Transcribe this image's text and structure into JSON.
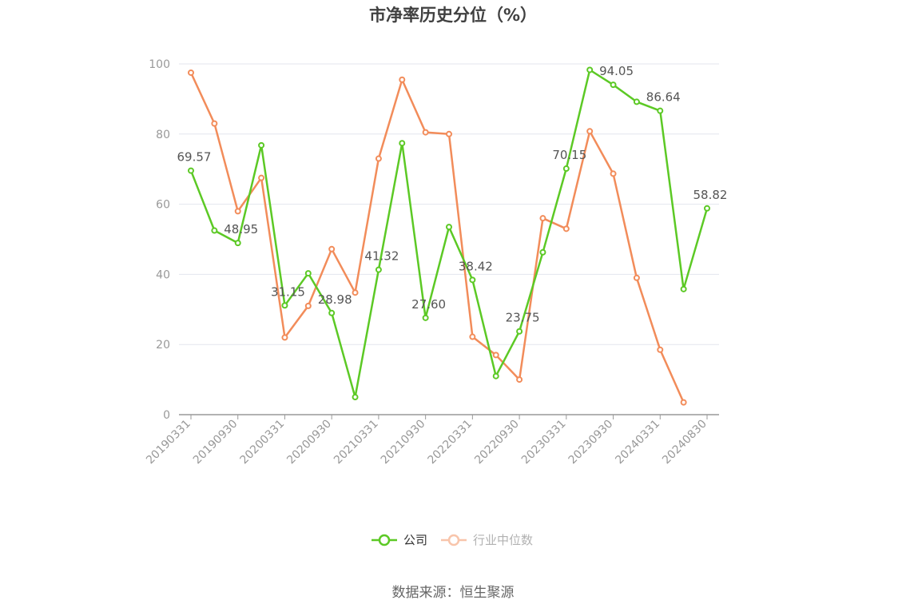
{
  "chart_data": {
    "type": "line",
    "title": "市净率历史分位（%）",
    "ylim": [
      0,
      100
    ],
    "yticks": [
      0,
      20,
      40,
      60,
      80,
      100
    ],
    "grid": true,
    "legend_position": "bottom-center",
    "x_tick_labels": [
      "20190331",
      "20190930",
      "20200331",
      "20200930",
      "20210331",
      "20210930",
      "20220331",
      "20220930",
      "20230331",
      "20230930",
      "20240331",
      "20240830"
    ],
    "x": [
      "20190331",
      "20190630",
      "20190930",
      "20191231",
      "20200331",
      "20200630",
      "20200930",
      "20201231",
      "20210331",
      "20210630",
      "20210930",
      "20211231",
      "20220331",
      "20220630",
      "20220930",
      "20221231",
      "20230331",
      "20230630",
      "20230930",
      "20231231",
      "20240331",
      "20240630",
      "20240830"
    ],
    "series": [
      {
        "name": "公司",
        "color": "#5cc925",
        "values": [
          69.57,
          52.5,
          48.95,
          76.8,
          31.15,
          40.3,
          28.98,
          5.0,
          41.32,
          77.4,
          27.6,
          53.5,
          38.42,
          11.0,
          23.75,
          46.3,
          70.15,
          98.3,
          94.05,
          89.2,
          86.64,
          35.8,
          58.82
        ],
        "labels": {
          "0": "69.57",
          "2": "48.95",
          "4": "31.15",
          "6": "28.98",
          "8": "41.32",
          "10": "27.60",
          "12": "38.42",
          "14": "23.75",
          "16": "70.15",
          "18": "94.05",
          "20": "86.64",
          "22": "58.82"
        }
      },
      {
        "name": "行业中位数",
        "color": "#f28c5a",
        "values": [
          97.5,
          83.0,
          58.0,
          67.5,
          22.0,
          31.0,
          47.2,
          34.8,
          73.0,
          95.5,
          80.5,
          80.0,
          22.2,
          17.0,
          10.0,
          56.0,
          53.0,
          80.8,
          68.7,
          39.0,
          18.5,
          3.5,
          null
        ]
      }
    ],
    "source": "数据来源：恒生聚源"
  }
}
